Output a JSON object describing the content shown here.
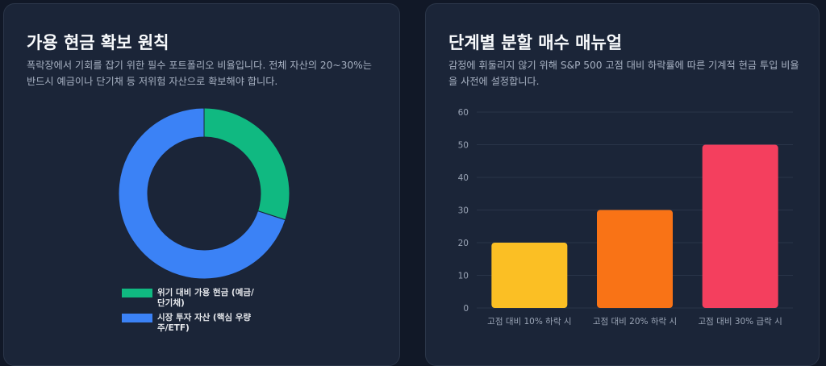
{
  "left_card": {
    "title": "가용 현금 확보 원칙",
    "description": "폭락장에서 기회를 잡기 위한 필수 포트폴리오 비율입니다. 전체 자산의 20~30%는 반드시 예금이나 단기채 등 저위험 자산으로 확보해야 합니다.",
    "chart_data": {
      "type": "pie",
      "donut": true,
      "slices": [
        {
          "label": "위기 대비 가용 현금 (예금/단기채)",
          "value": 30,
          "color": "#10b981"
        },
        {
          "label": "시장 투자 자산 (핵심 우량주/ETF)",
          "value": 70,
          "color": "#3b82f6"
        }
      ],
      "legend": "bottom"
    }
  },
  "right_card": {
    "title": "단계별 분할 매수 매뉴얼",
    "description": "감정에 휘둘리지 않기 위해 S&P 500 고점 대비 하락률에 따른 기계적 현금 투입 비율을 사전에 설정합니다.",
    "chart_data": {
      "type": "bar",
      "categories": [
        "고점 대비 10% 하락 시",
        "고점 대비 20% 하락 시",
        "고점 대비 30% 급락 시"
      ],
      "values": [
        20,
        30,
        50
      ],
      "colors": [
        "#fbbf24",
        "#f97316",
        "#f43f5e"
      ],
      "ylim": [
        0,
        60
      ],
      "yticks": [
        0,
        10,
        20,
        30,
        40,
        50,
        60
      ],
      "grid": true
    }
  }
}
